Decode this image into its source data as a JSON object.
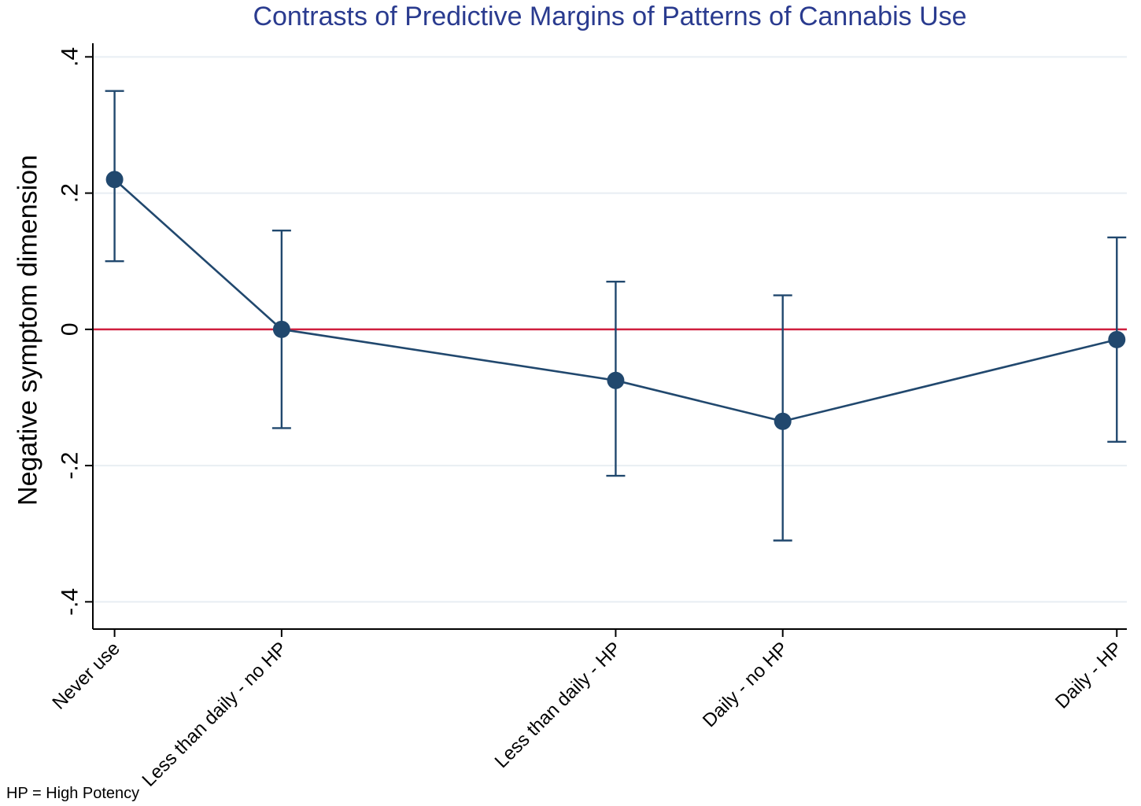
{
  "chart_data": {
    "type": "line",
    "title": "Contrasts of Predictive Margins of Patterns of Cannabis Use",
    "ylabel": "Negative symptom dimension",
    "xlabel": "",
    "note": "HP = High Potency",
    "categories": [
      "Never use",
      "Less than daily - no HP",
      "Less than daily - HP",
      "Daily - no HP",
      "Daily - HP"
    ],
    "x": [
      1,
      2,
      4,
      5,
      7
    ],
    "values": [
      0.22,
      0.0,
      -0.075,
      -0.135,
      -0.015
    ],
    "ci_low": [
      0.1,
      -0.145,
      -0.215,
      -0.31,
      -0.165
    ],
    "ci_high": [
      0.35,
      0.145,
      0.07,
      0.05,
      0.135
    ],
    "yticks": [
      0.4,
      0.2,
      0,
      -0.2,
      -0.4
    ],
    "ytick_labels": [
      ".4",
      ".2",
      "0",
      "-.2",
      "-.4"
    ],
    "ylim": [
      -0.44,
      0.42
    ],
    "xlim": [
      0.87,
      7.06
    ],
    "zero_line": 0,
    "grid": true,
    "legend": "none",
    "colors": {
      "marker": "#21486e",
      "line": "#21486e",
      "zero_line": "#cf1f3e",
      "grid": "#e8eef3",
      "axis": "#000000",
      "title": "#2a3b8f",
      "text": "#000000"
    }
  }
}
